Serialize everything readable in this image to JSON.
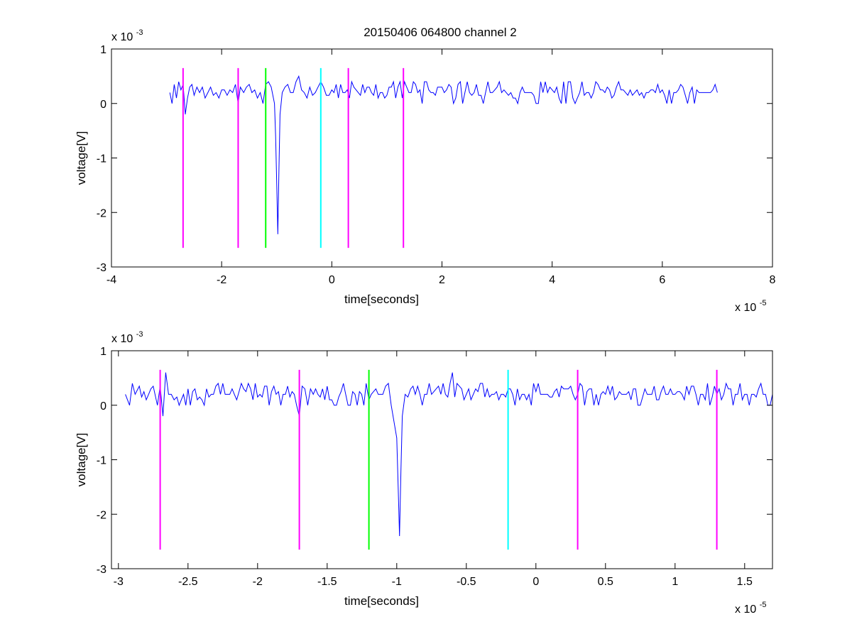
{
  "figure": {
    "title": "20150406 064800 channel 2"
  },
  "chart_data": [
    {
      "type": "line",
      "title": "20150406 064800 channel 2",
      "xlabel": "time[seconds]",
      "ylabel": "voltage[V]",
      "x_exponent_label": "x 10",
      "x_exponent_power": "-5",
      "y_exponent_label": "x 10",
      "y_exponent_power": "-3",
      "xlim": [
        -4,
        8
      ],
      "ylim": [
        -3,
        1
      ],
      "x_ticks": [
        -4,
        -2,
        0,
        2,
        4,
        6,
        8
      ],
      "x_tick_labels": [
        "-4",
        "-2",
        "0",
        "2",
        "4",
        "6",
        "8"
      ],
      "y_ticks": [
        -3,
        -2,
        -1,
        0,
        1
      ],
      "y_tick_labels": [
        "-3",
        "-2",
        "-1",
        "0",
        "1"
      ],
      "grid": false,
      "series": [
        {
          "color": "#0000ff",
          "x_range": [
            -2.94,
            7.0
          ],
          "x": [
            -2.94,
            -2.9,
            -2.86,
            -2.82,
            -2.78,
            -2.74,
            -2.7,
            -2.66,
            -2.62,
            -2.58,
            -2.5,
            -2.4,
            -2.3,
            -2.2,
            -2.1,
            -2.0,
            -1.9,
            -1.8,
            -1.7,
            -1.66,
            -1.6,
            -1.5,
            -1.4,
            -1.3,
            -1.2,
            -1.1,
            -1.04,
            -1.02,
            -1.0,
            -0.98,
            -0.96,
            -0.94,
            -0.9,
            -0.8,
            -0.7,
            -0.6,
            -0.5,
            -0.4,
            -0.3,
            -0.2,
            -0.1,
            0.0,
            0.2,
            0.4,
            0.6,
            0.8,
            1.0,
            1.2,
            1.4,
            1.6,
            1.8,
            2.0,
            2.5,
            3.0,
            3.5,
            4.0,
            4.5,
            5.0,
            5.5,
            6.0,
            6.5,
            7.0
          ],
          "y": [
            0.2,
            0.0,
            0.35,
            0.1,
            0.4,
            0.25,
            0.35,
            -0.2,
            0.1,
            0.3,
            0.15,
            0.2,
            0.1,
            0.3,
            0.2,
            0.25,
            0.15,
            0.2,
            0.0,
            0.3,
            0.2,
            0.35,
            0.25,
            0.2,
            0.35,
            0.3,
            0.0,
            -0.6,
            -1.5,
            -2.4,
            -1.2,
            -0.2,
            0.2,
            0.35,
            0.2,
            0.5,
            0.2,
            0.3,
            0.2,
            0.4,
            0.15,
            0.25,
            0.2,
            0.3,
            0.2,
            0.35,
            0.15,
            0.3,
            0.2,
            0.25,
            0.2,
            0.3,
            0.2,
            0.3,
            0.2,
            0.25,
            0.2,
            0.3,
            0.2,
            0.25,
            0.2,
            0.2
          ]
        }
      ],
      "markers": [
        {
          "x": -2.7,
          "color": "#ff00ff"
        },
        {
          "x": -1.7,
          "color": "#ff00ff"
        },
        {
          "x": -1.2,
          "color": "#00ff00"
        },
        {
          "x": -0.2,
          "color": "#00ffff"
        },
        {
          "x": 0.3,
          "color": "#ff00ff"
        },
        {
          "x": 1.3,
          "color": "#ff00ff"
        }
      ],
      "marker_y_range": [
        -2.65,
        0.65
      ]
    },
    {
      "type": "line",
      "xlabel": "time[seconds]",
      "ylabel": "voltage[V]",
      "x_exponent_label": "x 10",
      "x_exponent_power": "-5",
      "y_exponent_label": "x 10",
      "y_exponent_power": "-3",
      "xlim": [
        -3.05,
        1.7
      ],
      "ylim": [
        -3,
        1
      ],
      "x_ticks": [
        -3,
        -2.5,
        -2,
        -1.5,
        -1,
        -0.5,
        0,
        0.5,
        1,
        1.5
      ],
      "x_tick_labels": [
        "-3",
        "-2.5",
        "-2",
        "-1.5",
        "-1",
        "-0.5",
        "0",
        "0.5",
        "1",
        "1.5"
      ],
      "y_ticks": [
        -3,
        -2,
        -1,
        0,
        1
      ],
      "y_tick_labels": [
        "-3",
        "-2",
        "-1",
        "0",
        "1"
      ],
      "grid": false,
      "series": [
        {
          "color": "#0000ff",
          "x": [
            -2.95,
            -2.92,
            -2.88,
            -2.85,
            -2.8,
            -2.75,
            -2.72,
            -2.7,
            -2.68,
            -2.66,
            -2.62,
            -2.58,
            -2.5,
            -2.4,
            -2.3,
            -2.2,
            -2.1,
            -2.0,
            -1.9,
            -1.8,
            -1.72,
            -1.7,
            -1.66,
            -1.6,
            -1.5,
            -1.4,
            -1.3,
            -1.22,
            -1.2,
            -1.15,
            -1.1,
            -1.04,
            -1.0,
            -0.99,
            -0.98,
            -0.97,
            -0.96,
            -0.94,
            -0.9,
            -0.8,
            -0.7,
            -0.6,
            -0.5,
            -0.4,
            -0.3,
            -0.2,
            -0.1,
            0.0,
            0.1,
            0.2,
            0.3,
            0.4,
            0.5,
            0.6,
            0.7,
            0.8,
            0.9,
            1.0,
            1.1,
            1.2,
            1.3,
            1.4,
            1.5,
            1.6,
            1.7
          ],
          "y": [
            0.2,
            0.0,
            0.2,
            0.35,
            0.1,
            0.35,
            0.0,
            0.35,
            -0.2,
            0.6,
            0.2,
            0.15,
            0.3,
            0.1,
            0.35,
            0.2,
            0.3,
            0.15,
            0.25,
            0.2,
            0.0,
            -0.2,
            0.3,
            0.2,
            0.35,
            0.25,
            0.2,
            0.4,
            0.1,
            0.3,
            0.2,
            0.0,
            -0.6,
            -1.5,
            -2.4,
            -1.2,
            -0.2,
            0.2,
            0.3,
            0.2,
            0.35,
            0.6,
            0.2,
            0.4,
            0.2,
            0.3,
            0.2,
            0.25,
            0.15,
            0.3,
            0.2,
            0.3,
            0.2,
            0.25,
            0.3,
            0.2,
            0.25,
            0.2,
            0.2,
            0.2,
            0.2,
            0.3,
            0.2,
            0.3,
            0.2
          ]
        }
      ],
      "markers": [
        {
          "x": -2.7,
          "color": "#ff00ff"
        },
        {
          "x": -1.7,
          "color": "#ff00ff"
        },
        {
          "x": -1.2,
          "color": "#00ff00"
        },
        {
          "x": -0.2,
          "color": "#00ffff"
        },
        {
          "x": 0.3,
          "color": "#ff00ff"
        },
        {
          "x": 1.3,
          "color": "#ff00ff"
        }
      ],
      "marker_y_range": [
        -2.65,
        0.65
      ]
    }
  ]
}
